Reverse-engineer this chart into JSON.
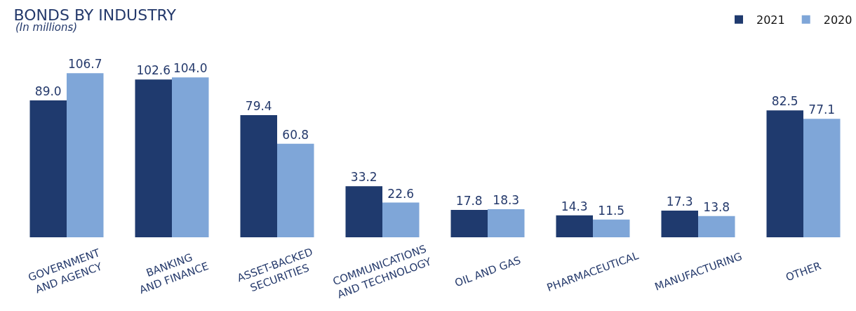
{
  "chart_data": {
    "type": "bar",
    "title": "BONDS BY INDUSTRY",
    "subtitle": "(In millions)",
    "categories": [
      "GOVERNMENT\nAND AGENCY",
      "BANKING\nAND FINANCE",
      "ASSET-BACKED\nSECURITIES",
      "COMMUNICATIONS\nAND TECHNOLOGY",
      "OIL AND GAS",
      "PHARMACEUTICAL",
      "MANUFACTURING",
      "OTHER"
    ],
    "series": [
      {
        "name": "2021",
        "color": "#1f3a6e",
        "values": [
          89.0,
          102.6,
          79.4,
          33.2,
          17.8,
          14.3,
          17.3,
          82.5
        ],
        "value_labels": [
          "89.0",
          "102.6",
          "79.4",
          "33.2",
          "17.8",
          "14.3",
          "17.3",
          "82.5"
        ]
      },
      {
        "name": "2020",
        "color": "#7fa6d8",
        "values": [
          106.7,
          104.0,
          60.8,
          22.6,
          18.3,
          11.5,
          13.8,
          77.1
        ],
        "value_labels": [
          "106.7",
          "104.0",
          "60.8",
          "22.6",
          "18.3",
          "11.5",
          "13.8",
          "77.1"
        ]
      }
    ],
    "legend": "top right"
  }
}
